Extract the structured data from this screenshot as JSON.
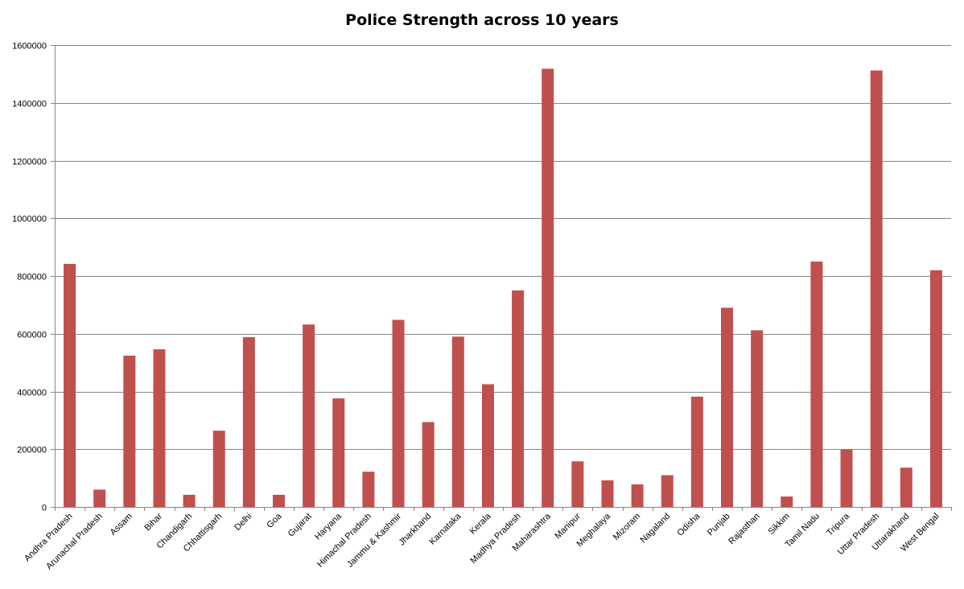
{
  "chart_data": {
    "type": "bar",
    "title": "Police Strength across 10 years",
    "xlabel": "",
    "ylabel": "",
    "ylim": [
      0,
      1600000
    ],
    "yticks": [
      0,
      200000,
      400000,
      600000,
      800000,
      1000000,
      1200000,
      1400000,
      1600000
    ],
    "ytick_labels": [
      "0",
      "200000",
      "400000",
      "600000",
      "800000",
      "1000000",
      "1200000",
      "1400000",
      "1600000"
    ],
    "grid": true,
    "legend": "none",
    "bar_color": "#C0504D",
    "categories": [
      "Andhra Pradesh",
      "Arunachal Pradesh",
      "Assam",
      "Bihar",
      "Chandigarh",
      "Chhattisgarh",
      "Delhi",
      "Goa",
      "Gujarat",
      "Haryana",
      "Himachal Pradesh",
      "Jammu & Kashmir",
      "Jharkhand",
      "Karnataka",
      "Kerala",
      "Madhya Pradesh",
      "Maharashtra",
      "Manipur",
      "Meghalaya",
      "Mizoram",
      "Nagaland",
      "Odisha",
      "Punjab",
      "Rajasthan",
      "Sikkim",
      "Tamil Nadu",
      "Tripura",
      "Uttar Pradesh",
      "Uttarakhand",
      "West Bengal"
    ],
    "values": [
      842000,
      60000,
      524000,
      546000,
      42000,
      264000,
      588000,
      42000,
      632000,
      376000,
      122000,
      648000,
      294000,
      590000,
      425000,
      750000,
      1518000,
      158000,
      92000,
      78000,
      110000,
      382000,
      690000,
      612000,
      36000,
      850000,
      198000,
      1512000,
      136000,
      820000
    ]
  }
}
